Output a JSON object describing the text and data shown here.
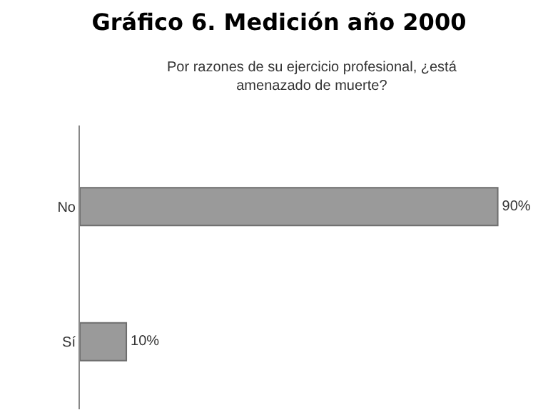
{
  "chart_data": {
    "type": "bar",
    "orientation": "horizontal",
    "title": "Gráfico 6. Medición año 2000",
    "subtitle": "Por razones de su ejercicio profesional, ¿está\namenazado de muerte?",
    "categories": [
      "No",
      "Sí"
    ],
    "values": [
      90,
      10
    ],
    "value_labels": [
      "90%",
      "10%"
    ],
    "color": "#9a9a9a",
    "grid": false,
    "legend": false
  }
}
